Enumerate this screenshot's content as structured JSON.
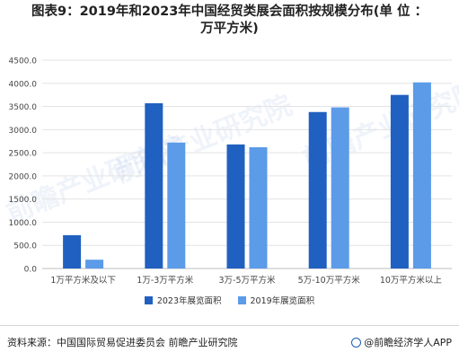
{
  "title_line1": "图表9：2019年和2023年中国经贸类展会面积按规模分布(单 位 ：",
  "title_line2": "万平方米)",
  "colors": {
    "s2023": "#2060c0",
    "s2019": "#5b9be8",
    "grid": "#e3e3e3",
    "axis": "#bdbdbd",
    "text": "#444444"
  },
  "chart_data": {
    "type": "bar",
    "categories": [
      "1万平方米及以下",
      "1万-3万平方米",
      "3万-5万平方米",
      "5万-10万平方米",
      "10万平方米以上"
    ],
    "series": [
      {
        "name": "2023年展览面积",
        "values": [
          720,
          3570,
          2680,
          3380,
          3750
        ]
      },
      {
        "name": "2019年展览面积",
        "values": [
          190,
          2720,
          2620,
          3480,
          4020
        ]
      }
    ],
    "yticks": [
      "0.0",
      "500.0",
      "1000.0",
      "1500.0",
      "2000.0",
      "2500.0",
      "3000.0",
      "3500.0",
      "4000.0",
      "4500.0"
    ],
    "ylim": [
      0,
      4500
    ],
    "grid": true,
    "legend_position": "bottom"
  },
  "footer": {
    "source": "资料来源：中国国际贸易促进委员会 前瞻产业研究院",
    "brand": "@前瞻经济学人APP"
  },
  "watermark_text": "前瞻产业研究院"
}
